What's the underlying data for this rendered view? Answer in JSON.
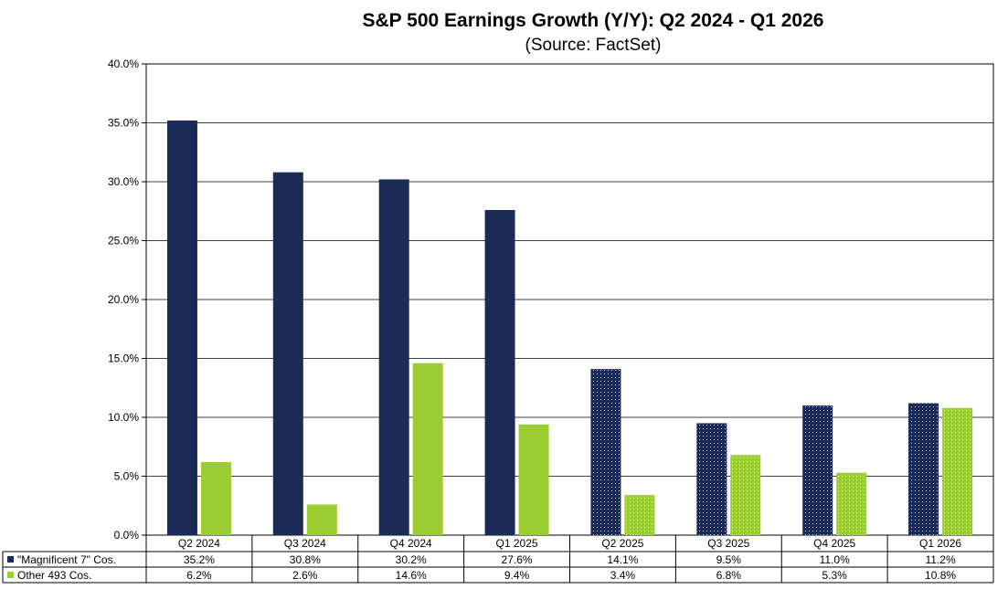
{
  "chart_data": {
    "type": "bar",
    "title": "S&P 500 Earnings Growth (Y/Y): Q2 2024 - Q1 2026",
    "subtitle": "(Source: FactSet)",
    "categories": [
      "Q2 2024",
      "Q3 2024",
      "Q4 2024",
      "Q1 2025",
      "Q2 2025",
      "Q3 2025",
      "Q4 2025",
      "Q1 2026"
    ],
    "series": [
      {
        "name": "\"Magnificent 7\" Cos.",
        "color": "#1a2b57",
        "values": [
          35.2,
          30.8,
          30.2,
          27.6,
          14.1,
          9.5,
          11.0,
          11.2
        ],
        "labels": [
          "35.2%",
          "30.8%",
          "30.2%",
          "27.6%",
          "14.1%",
          "9.5%",
          "11.0%",
          "11.2%"
        ]
      },
      {
        "name": "Other 493 Cos.",
        "color": "#9acd32",
        "values": [
          6.2,
          2.6,
          14.6,
          9.4,
          3.4,
          6.8,
          5.3,
          10.8
        ],
        "labels": [
          "6.2%",
          "2.6%",
          "14.6%",
          "9.4%",
          "3.4%",
          "6.8%",
          "5.3%",
          "10.8%"
        ]
      }
    ],
    "estimate_categories": [
      "Q2 2025",
      "Q3 2025",
      "Q4 2025",
      "Q1 2026"
    ],
    "ylim": [
      0,
      40
    ],
    "yticks": [
      0,
      5,
      10,
      15,
      20,
      25,
      30,
      35,
      40
    ],
    "ytick_labels": [
      "0.0%",
      "5.0%",
      "10.0%",
      "15.0%",
      "20.0%",
      "25.0%",
      "30.0%",
      "35.0%",
      "40.0%"
    ],
    "grid": true,
    "legend": "data-table-below"
  }
}
